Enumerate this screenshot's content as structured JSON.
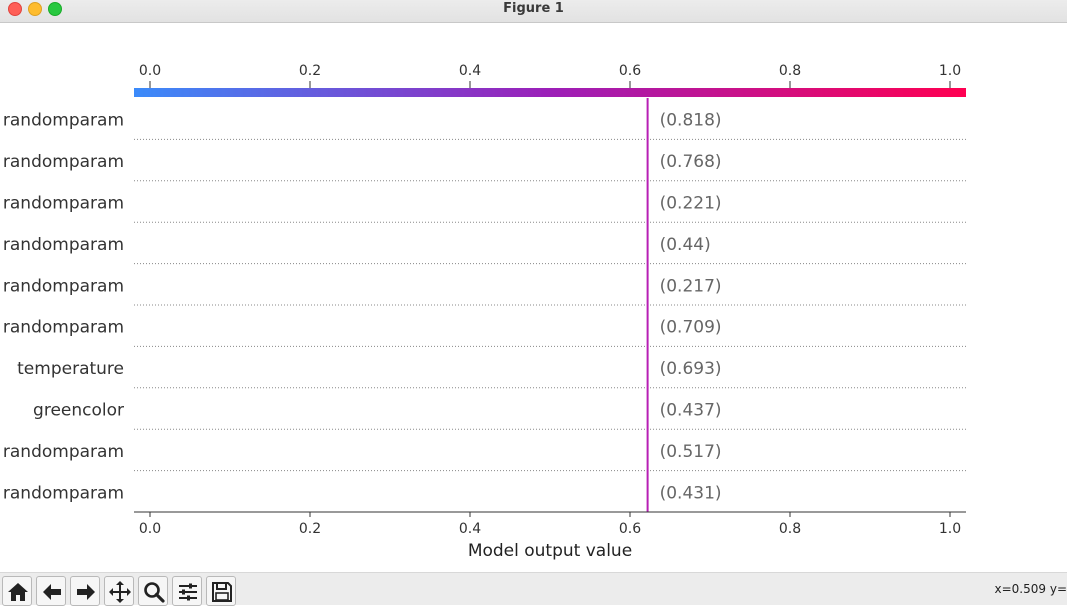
{
  "window": {
    "title": "Figure 1"
  },
  "toolbar": {
    "buttons": [
      {
        "name": "home-icon"
      },
      {
        "name": "back-arrow-icon"
      },
      {
        "name": "forward-arrow-icon"
      },
      {
        "name": "pan-icon"
      },
      {
        "name": "zoom-icon"
      },
      {
        "name": "configure-subplots-icon"
      },
      {
        "name": "save-icon"
      }
    ],
    "coords_text": "x=0.509 y="
  },
  "chart_data": {
    "type": "decision",
    "xlabel": "Model output value",
    "xlim": [
      -0.02,
      1.02
    ],
    "xticks": [
      0.0,
      0.2,
      0.4,
      0.6,
      0.8,
      1.0
    ],
    "xtick_labels": [
      "0.0",
      "0.2",
      "0.4",
      "0.6",
      "0.8",
      "1.0"
    ],
    "features": [
      "randomparam",
      "randomparam",
      "randomparam",
      "randomparam",
      "randomparam",
      "randomparam",
      "temperature",
      "greencolor",
      "randomparam",
      "randomparam"
    ],
    "feature_values": [
      "(0.818)",
      "(0.768)",
      "(0.221)",
      "(0.44)",
      "(0.217)",
      "(0.709)",
      "(0.693)",
      "(0.437)",
      "(0.517)",
      "(0.431)"
    ],
    "decision_line_x": 0.622,
    "colormap": [
      "#3b8bfa",
      "#9c1fb8",
      "#ff0051"
    ],
    "line_color": "#b71fb5",
    "grid": "horizontal-dotted"
  }
}
